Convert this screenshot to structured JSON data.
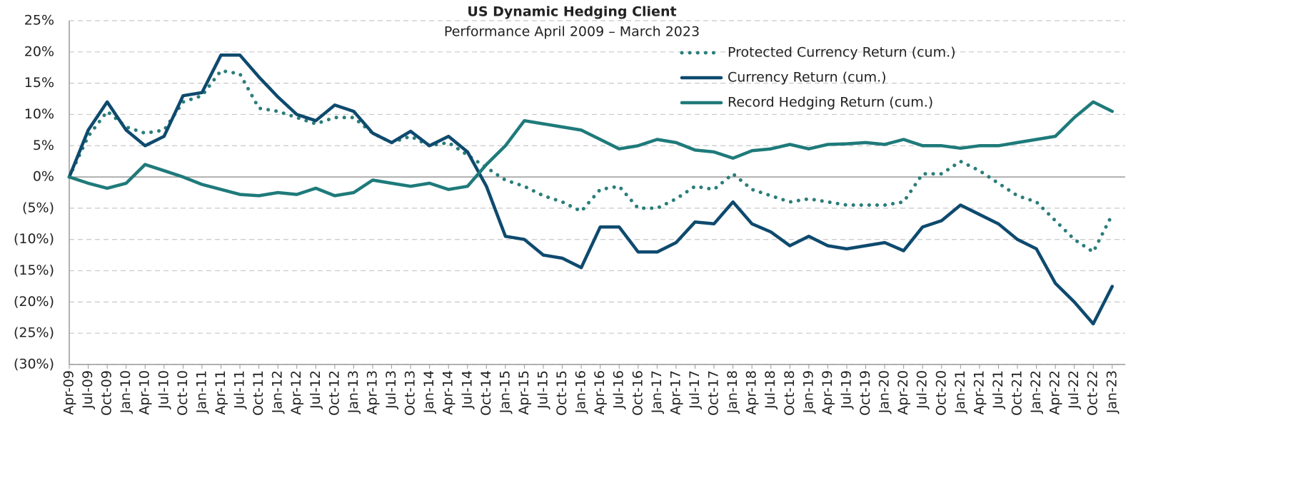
{
  "chart_data": {
    "type": "line",
    "title": "US Dynamic Hedging Client",
    "subtitle": "Performance April 2009 – March 2023",
    "categories": [
      "Apr-09",
      "Jul-09",
      "Oct-09",
      "Jan-10",
      "Apr-10",
      "Jul-10",
      "Oct-10",
      "Jan-11",
      "Apr-11",
      "Jul-11",
      "Oct-11",
      "Jan-12",
      "Apr-12",
      "Jul-12",
      "Oct-12",
      "Jan-13",
      "Apr-13",
      "Jul-13",
      "Oct-13",
      "Jan-14",
      "Apr-14",
      "Jul-14",
      "Oct-14",
      "Jan-15",
      "Apr-15",
      "Jul-15",
      "Oct-15",
      "Jan-16",
      "Apr-16",
      "Jul-16",
      "Oct-16",
      "Jan-17",
      "Apr-17",
      "Jul-17",
      "Oct-17",
      "Jan-18",
      "Apr-18",
      "Jul-18",
      "Oct-18",
      "Jan-19",
      "Apr-19",
      "Jul-19",
      "Oct-19",
      "Jan-20",
      "Apr-20",
      "Jul-20",
      "Oct-20",
      "Jan-21",
      "Apr-21",
      "Jul-21",
      "Oct-21",
      "Jan-22",
      "Apr-22",
      "Jul-22",
      "Oct-22",
      "Jan-23"
    ],
    "series": [
      {
        "name": "Protected Currency Return (cum.)",
        "color": "#2a7d7a",
        "line_style": "dotted",
        "values": [
          0,
          6.5,
          10.5,
          8,
          7,
          7.5,
          12,
          13,
          17,
          16.5,
          11,
          10.5,
          9.5,
          8.5,
          9.5,
          9.5,
          7,
          5.5,
          6.5,
          5,
          5.5,
          3.5,
          1.5,
          -0.5,
          -1.5,
          -3,
          -4,
          -5.5,
          -2,
          -1.5,
          -5,
          -5,
          -3.5,
          -1.5,
          -2,
          0.5,
          -2,
          -3,
          -4,
          -3.5,
          -4,
          -4.5,
          -4.5,
          -4.5,
          -4,
          0.5,
          0.5,
          2.5,
          1,
          -1,
          -3,
          -4,
          -7,
          -10,
          -12,
          -6
        ]
      },
      {
        "name": "Currency Return (cum.)",
        "color": "#0e4a6e",
        "line_style": "solid",
        "values": [
          0,
          7.5,
          12,
          7.5,
          5,
          6.5,
          13,
          13.5,
          19.5,
          19.5,
          16,
          12.8,
          10,
          9,
          11.5,
          10.5,
          7,
          5.5,
          7.3,
          5,
          6.5,
          4,
          -1.5,
          -9.5,
          -10,
          -12.5,
          -13,
          -14.5,
          -8,
          -8,
          -12,
          -12,
          -10.5,
          -7.2,
          -7.5,
          -4,
          -7.5,
          -8.8,
          -11,
          -9.5,
          -11,
          -11.5,
          -11,
          -10.5,
          -11.8,
          -8,
          -7,
          -4.5,
          -6,
          -7.5,
          -10,
          -11.5,
          -17,
          -20,
          -23.5,
          -17.5
        ]
      },
      {
        "name": "Record Hedging Return (cum.)",
        "color": "#1f7a7a",
        "line_style": "solid",
        "values": [
          0,
          -1,
          -1.8,
          -1,
          2,
          1,
          0,
          -1.2,
          -2,
          -2.8,
          -3,
          -2.5,
          -2.8,
          -1.8,
          -3,
          -2.5,
          -0.5,
          -1,
          -1.5,
          -1,
          -2,
          -1.5,
          2,
          5,
          9,
          8.5,
          8,
          7.5,
          6,
          4.5,
          5,
          6,
          5.5,
          4.3,
          4,
          3,
          4.2,
          4.5,
          5.2,
          4.5,
          5.2,
          5.3,
          5.5,
          5.2,
          6,
          5,
          5,
          4.6,
          5,
          5,
          5.5,
          6,
          6.5,
          9.5,
          12,
          10.5
        ]
      }
    ],
    "ylim": [
      -30,
      25
    ],
    "yticks": [
      {
        "value": 25,
        "label": "25%"
      },
      {
        "value": 20,
        "label": "20%"
      },
      {
        "value": 15,
        "label": "15%"
      },
      {
        "value": 10,
        "label": "10%"
      },
      {
        "value": 5,
        "label": "5%"
      },
      {
        "value": 0,
        "label": "0%"
      },
      {
        "value": -5,
        "label": "(5%)"
      },
      {
        "value": -10,
        "label": "(10%)"
      },
      {
        "value": -15,
        "label": "(15%)"
      },
      {
        "value": -20,
        "label": "(20%)"
      },
      {
        "value": -25,
        "label": "(25%)"
      },
      {
        "value": -30,
        "label": "(30%)"
      }
    ],
    "grid": true,
    "legend": "top-right"
  }
}
